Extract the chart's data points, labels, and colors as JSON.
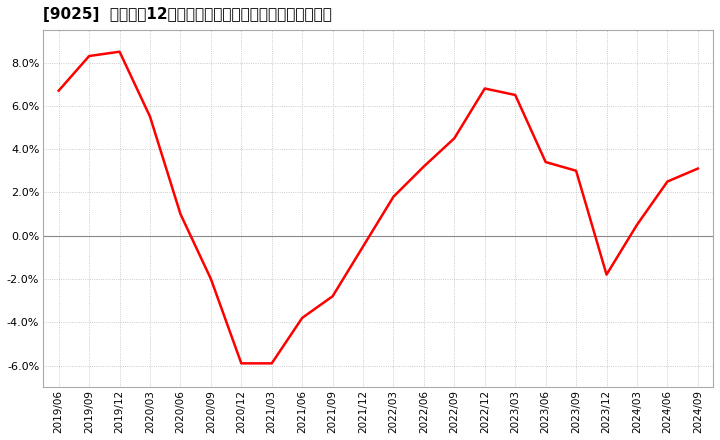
{
  "title": "[9025]  売上高の12か月移動合計の対前年同期増減率の推移",
  "x_labels": [
    "2019/06",
    "2019/09",
    "2019/12",
    "2020/03",
    "2020/06",
    "2020/09",
    "2020/12",
    "2021/03",
    "2021/06",
    "2021/09",
    "2021/12",
    "2022/03",
    "2022/06",
    "2022/09",
    "2022/12",
    "2023/03",
    "2023/06",
    "2023/09",
    "2023/12",
    "2024/03",
    "2024/06",
    "2024/09"
  ],
  "y_values": [
    0.067,
    0.083,
    0.085,
    0.055,
    0.01,
    -0.02,
    -0.059,
    -0.059,
    -0.038,
    -0.028,
    -0.005,
    0.018,
    0.032,
    0.045,
    0.068,
    0.065,
    0.034,
    0.03,
    -0.018,
    0.005,
    0.025,
    0.031
  ],
  "line_color": "#ff0000",
  "line_width": 1.8,
  "ylim": [
    -0.07,
    0.095
  ],
  "yticks": [
    -0.06,
    -0.04,
    -0.02,
    0.0,
    0.02,
    0.04,
    0.06,
    0.08
  ],
  "grid_color": "#bbbbbb",
  "background_color": "#ffffff",
  "plot_bg_color": "#ffffff",
  "title_fontsize": 11,
  "tick_fontsize": 7.5,
  "ytick_fontsize": 8
}
